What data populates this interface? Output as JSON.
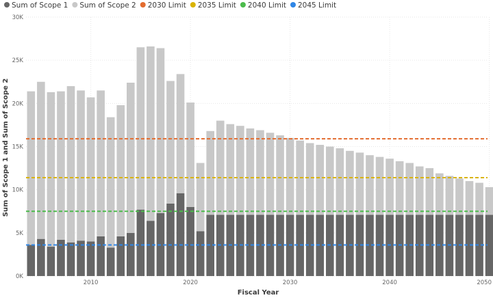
{
  "chart_data": {
    "type": "bar",
    "xlabel": "Fiscal Year",
    "ylabel": "Sum of Scope 1 and Sum of Scope 2",
    "ylim": [
      0,
      30000
    ],
    "yticks": [
      0,
      5000,
      10000,
      15000,
      20000,
      25000,
      30000
    ],
    "ytick_labels": [
      "0K",
      "5K",
      "10K",
      "15K",
      "20K",
      "25K",
      "30K"
    ],
    "xticks": [
      2010,
      2020,
      2030,
      2040,
      2050
    ],
    "xtick_labels": [
      "2010",
      "2020",
      "2030",
      "2040",
      "2050"
    ],
    "grid": true,
    "legend_position": "top-left",
    "categories": [
      2004,
      2005,
      2006,
      2007,
      2008,
      2009,
      2010,
      2011,
      2012,
      2013,
      2014,
      2015,
      2016,
      2017,
      2018,
      2019,
      2020,
      2021,
      2022,
      2023,
      2024,
      2025,
      2026,
      2027,
      2028,
      2029,
      2030,
      2031,
      2032,
      2033,
      2034,
      2035,
      2036,
      2037,
      2038,
      2039,
      2040,
      2041,
      2042,
      2043,
      2044,
      2045,
      2046,
      2047,
      2048,
      2049,
      2050
    ],
    "series": [
      {
        "name": "Sum of Scope 1",
        "color": "#666666",
        "values": [
          3600,
          4300,
          3400,
          4200,
          3900,
          4100,
          4000,
          4600,
          3300,
          4600,
          5000,
          7700,
          6400,
          7300,
          8400,
          9600,
          8000,
          5200,
          7100,
          7100,
          7100,
          7100,
          7100,
          7100,
          7100,
          7100,
          7100,
          7100,
          7100,
          7100,
          7100,
          7100,
          7100,
          7100,
          7100,
          7100,
          7100,
          7100,
          7100,
          7100,
          7100,
          7100,
          7100,
          7100,
          7100,
          7100,
          7100
        ]
      },
      {
        "name": "Sum of Scope 2",
        "color": "#c8c8c8",
        "values": [
          17800,
          18200,
          17900,
          17200,
          18100,
          17400,
          16700,
          16900,
          15100,
          15200,
          17400,
          18800,
          20200,
          19100,
          14200,
          13800,
          12100,
          7900,
          9700,
          10900,
          10500,
          10300,
          10000,
          9800,
          9500,
          9200,
          8900,
          8600,
          8300,
          8100,
          7900,
          7700,
          7400,
          7200,
          6900,
          6700,
          6500,
          6200,
          6000,
          5600,
          5400,
          4800,
          4500,
          4200,
          3900,
          3700,
          3200
        ]
      }
    ],
    "reference_lines": [
      {
        "name": "2030 Limit",
        "value": 15900,
        "color": "#e36c2f"
      },
      {
        "name": "2035 Limit",
        "value": 11400,
        "color": "#d9b300"
      },
      {
        "name": "2040 Limit",
        "value": 7500,
        "color": "#4cbb4c"
      },
      {
        "name": "2045 Limit",
        "value": 3600,
        "color": "#2f86e6"
      }
    ]
  }
}
